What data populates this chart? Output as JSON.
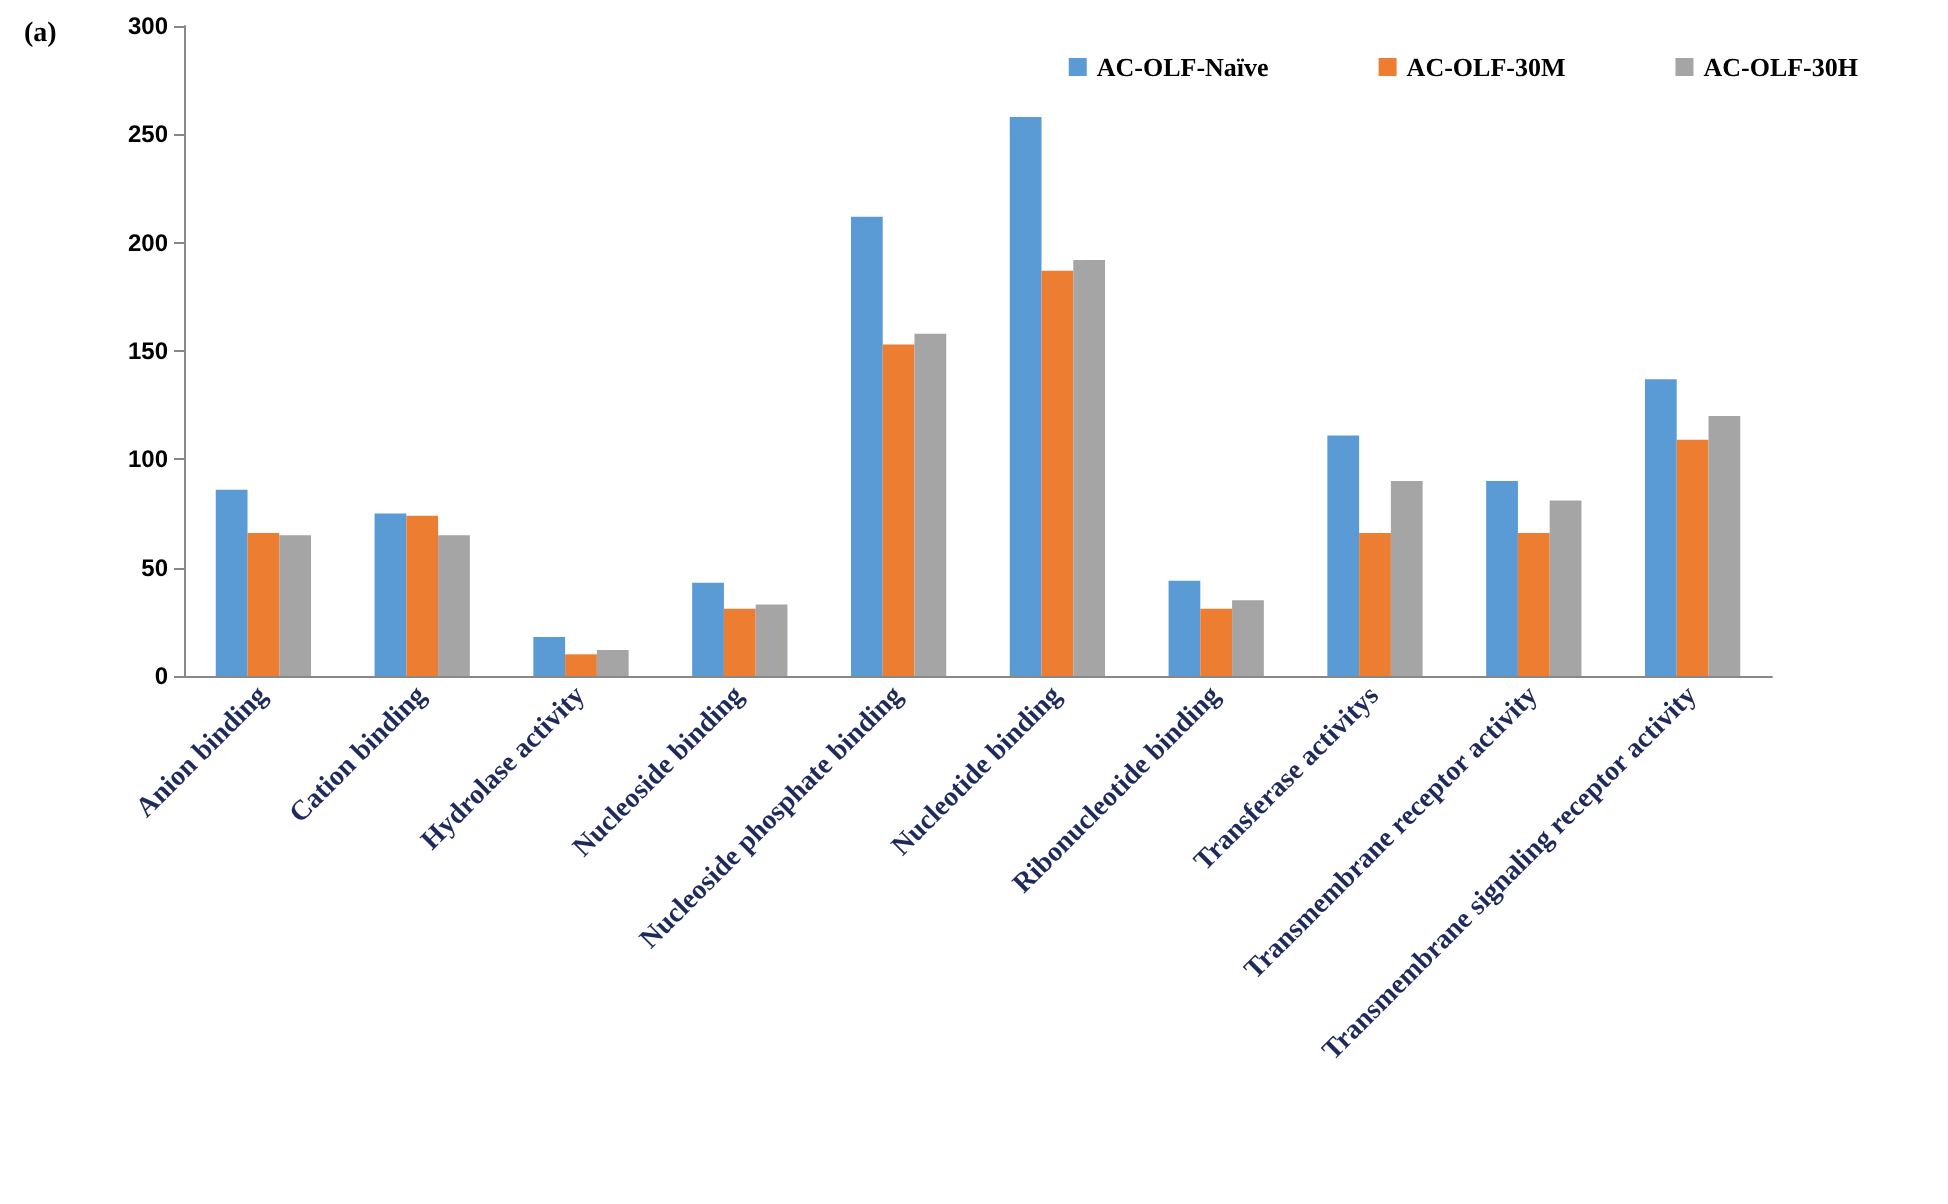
{
  "chart_data": {
    "type": "bar",
    "annotations": [
      "(a)"
    ],
    "categories": [
      "Anion binding",
      "Cation binding",
      "Hydrolase activity",
      "Nucleoside binding",
      "Nucleoside phosphate binding",
      "Nucleotide binding",
      "Ribonucleotide binding",
      "Transferase activitys",
      "Transmembrane receptor activity",
      "Transmembrane signaling receptor activity"
    ],
    "series": [
      {
        "name": "AC-OLF-Naïve",
        "color": "#5b9bd5",
        "values": [
          86,
          75,
          18,
          43,
          212,
          258,
          44,
          111,
          90,
          137
        ]
      },
      {
        "name": "AC-OLF-30M",
        "color": "#ed7d31",
        "values": [
          66,
          74,
          10,
          31,
          153,
          187,
          31,
          66,
          66,
          109
        ]
      },
      {
        "name": "AC-OLF-30H",
        "color": "#a5a5a5",
        "values": [
          65,
          65,
          12,
          33,
          158,
          192,
          35,
          90,
          81,
          120
        ]
      }
    ],
    "ylim": [
      0,
      300
    ],
    "yticks": [
      0,
      50,
      100,
      150,
      200,
      250,
      300
    ],
    "grid": false,
    "legend": "top right"
  }
}
